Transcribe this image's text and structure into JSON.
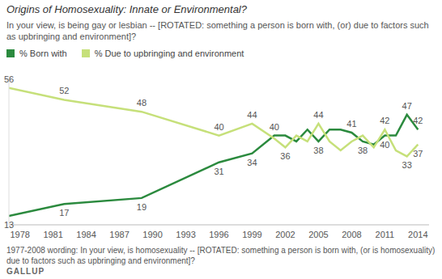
{
  "chart_data": {
    "type": "line",
    "title": "Origins of Homosexuality: Innate or Environmental?",
    "subtitle": "In your view, is being gay or lesbian -- [ROTATED: something a person is born with, (or) due to factors such as upbringing and environment]?",
    "footnote": "1977-2008 wording: In your view, is homosexuality -- [ROTATED: something a person is born with, (or is homosexuality) due to factors such as upbringing and environment]?",
    "source": "GALLUP",
    "x": [
      1977,
      1982,
      1989,
      1996,
      1999,
      2001,
      2002,
      2003,
      2004,
      2005,
      2006,
      2007,
      2008,
      2009,
      2010,
      2011,
      2012,
      2013,
      2014
    ],
    "series": [
      {
        "name": "% Born with",
        "color": "#2b8a3e",
        "values": [
          13,
          17,
          19,
          31,
          34,
          40,
          40,
          38,
          42,
          38,
          42,
          42,
          41,
          38,
          37,
          40,
          40,
          47,
          42
        ],
        "value_labels": [
          "13",
          "17",
          "19",
          "31",
          "34",
          "40",
          null,
          null,
          null,
          "38",
          null,
          null,
          "41",
          "38",
          null,
          "40",
          null,
          "47",
          "42"
        ]
      },
      {
        "name": "% Due to upbringing and environment",
        "color": "#c6e07a",
        "values": [
          56,
          52,
          48,
          40,
          44,
          39,
          36,
          40,
          38,
          44,
          38,
          35,
          38,
          40,
          36,
          42,
          35,
          33,
          37
        ],
        "value_labels": [
          "56",
          "52",
          "48",
          "40",
          "44",
          null,
          "36",
          null,
          null,
          "44",
          null,
          null,
          null,
          null,
          null,
          "42",
          null,
          "33",
          "37"
        ]
      }
    ],
    "xlim": [
      1977,
      2015
    ],
    "xticks": [
      1978,
      1981,
      1984,
      1987,
      1990,
      1993,
      1996,
      1999,
      2002,
      2005,
      2008,
      2011,
      2014
    ],
    "ylim": [
      10,
      60
    ],
    "grid": false,
    "tick_labels": "x",
    "data_labels": true
  }
}
